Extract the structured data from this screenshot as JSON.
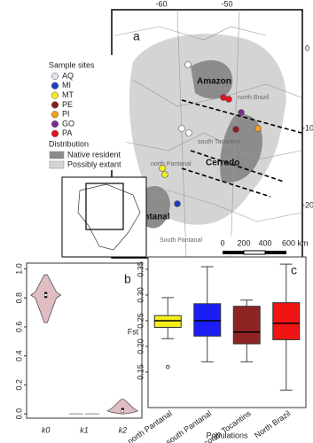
{
  "map": {
    "panel": "a",
    "xticks": [
      -60,
      -50
    ],
    "yticks": [
      0,
      -10,
      -20
    ],
    "legend_title": "Sample sites",
    "sample_sites": [
      {
        "code": "AQ",
        "color": "#dfe5ee"
      },
      {
        "code": "MI",
        "color": "#1a3fc4"
      },
      {
        "code": "MT",
        "color": "#f3ee1e"
      },
      {
        "code": "PE",
        "color": "#8e1c1c"
      },
      {
        "code": "PI",
        "color": "#f2a11c"
      },
      {
        "code": "GO",
        "color": "#7a2f8e"
      },
      {
        "code": "PA",
        "color": "#e3121c"
      }
    ],
    "distribution_title": "Distribution",
    "distribution": [
      {
        "name": "Native resident",
        "color": "#8c8c8c"
      },
      {
        "name": "Possibly extant",
        "color": "#d4d4d4"
      }
    ],
    "regions": [
      "Amazon",
      "north Brazil",
      "south Tocantins",
      "Cerrado",
      "north Pantanal",
      "Pantanal",
      "South Pantanal"
    ],
    "scale_bar": [
      "0",
      "200",
      "400",
      "600 km"
    ]
  },
  "chart_data": [
    {
      "type": "violin",
      "panel": "b",
      "color": "#e0bcc3",
      "categories": [
        "k0",
        "k1",
        "k2"
      ],
      "min": [
        0.63,
        0.0,
        0.0
      ],
      "q1": [
        0.8,
        0.0,
        0.01
      ],
      "median": [
        0.82,
        0.0,
        0.02
      ],
      "q3": [
        0.84,
        0.0,
        0.04
      ],
      "max": [
        0.96,
        0.0,
        0.1
      ],
      "ylim": [
        -0.03,
        1.04
      ],
      "yticks": [
        {
          "value": 0,
          "label": "0.0"
        },
        0.2,
        0.4,
        0.6,
        0.8,
        {
          "value": 1,
          "label": "1.0"
        }
      ]
    },
    {
      "type": "box",
      "panel": "c",
      "ylabel": "Fst",
      "xlabel": "Populations",
      "categories": [
        "north Pantanal",
        "south Pantanal",
        "south Tocantins",
        "North Brazil"
      ],
      "colors": [
        "#f5ee1a",
        "#1a1ef5",
        "#8e2424",
        "#f01414"
      ],
      "min": [
        0.215,
        0.17,
        0.17,
        0.115
      ],
      "q1": [
        0.237,
        0.22,
        0.205,
        0.213
      ],
      "median": [
        0.25,
        0.25,
        0.228,
        0.245
      ],
      "q3": [
        0.26,
        0.283,
        0.278,
        0.285
      ],
      "max": [
        0.295,
        0.355,
        0.29,
        0.36
      ],
      "outliers": [
        [
          0.16
        ],
        [],
        [],
        []
      ],
      "ylim": [
        0.081,
        0.374
      ],
      "yticks": [
        0.15,
        {
          "value": 0.2,
          "label": "0.20"
        },
        0.25,
        {
          "value": 0.3,
          "label": "0.30"
        },
        0.35
      ]
    }
  ]
}
